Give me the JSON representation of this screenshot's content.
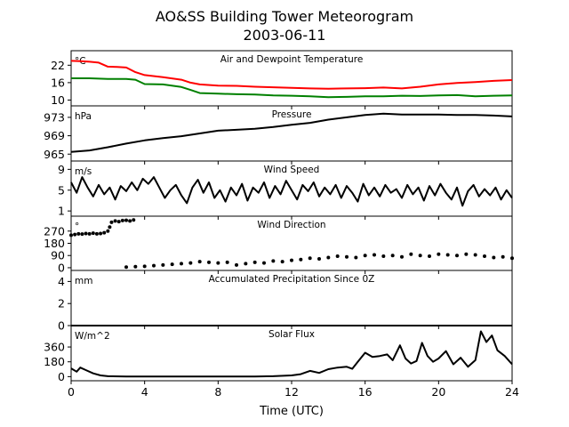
{
  "figure": {
    "title_line1": "AO&SS Building Tower Meteorogram",
    "title_line2": "2003-06-11",
    "xlabel": "Time (UTC)",
    "x_ticks": [
      0,
      4,
      8,
      12,
      16,
      20,
      24
    ],
    "colors": {
      "temperature": "#ff0000",
      "dewpoint": "#008000",
      "line": "#000000"
    }
  },
  "chart_data": [
    {
      "type": "line",
      "title": "Air and Dewpoint Temperature",
      "unit": "°C",
      "xlim": [
        0,
        24
      ],
      "ylim": [
        8,
        27
      ],
      "yticks": [
        10,
        16,
        22
      ],
      "series": [
        {
          "key": "temperature",
          "x": [
            0,
            0.5,
            1.0,
            1.5,
            2.0,
            2.5,
            3.0,
            3.5,
            4.0,
            5.0,
            6.0,
            6.5,
            7.0,
            8.0,
            9.0,
            10.0,
            11.0,
            12.0,
            13.0,
            14.0,
            15.0,
            16.0,
            17.0,
            18.0,
            19.0,
            20.0,
            21.0,
            22.0,
            23.0,
            24.0
          ],
          "y": [
            23.5,
            23.4,
            23.2,
            22.9,
            21.5,
            21.4,
            21.2,
            19.6,
            18.6,
            17.9,
            17.0,
            16.0,
            15.4,
            15.0,
            14.9,
            14.6,
            14.4,
            14.2,
            14.0,
            13.9,
            14.0,
            14.1,
            14.3,
            14.0,
            14.6,
            15.4,
            15.9,
            16.2,
            16.6,
            16.9
          ]
        },
        {
          "key": "dewpoint",
          "x": [
            0,
            1.0,
            2.0,
            3.0,
            3.5,
            4.0,
            5.0,
            6.0,
            6.5,
            7.0,
            8.0,
            9.0,
            10.0,
            11.0,
            12.0,
            13.0,
            14.0,
            15.0,
            16.0,
            17.0,
            18.0,
            19.0,
            20.0,
            21.0,
            22.0,
            23.0,
            24.0
          ],
          "y": [
            17.5,
            17.5,
            17.3,
            17.3,
            17.0,
            15.5,
            15.4,
            14.5,
            13.5,
            12.4,
            12.2,
            12.0,
            11.9,
            11.6,
            11.5,
            11.3,
            11.0,
            11.1,
            11.3,
            11.3,
            11.5,
            11.4,
            11.6,
            11.7,
            11.3,
            11.5,
            11.6
          ]
        }
      ]
    },
    {
      "type": "line",
      "title": "Pressure",
      "unit": "hPa",
      "xlim": [
        0,
        24
      ],
      "ylim": [
        963.5,
        975.5
      ],
      "yticks": [
        965,
        969,
        973
      ],
      "series": [
        {
          "key": "pressure",
          "x": [
            0,
            1,
            2,
            3,
            4,
            5,
            6,
            7,
            8,
            9,
            10,
            11,
            12,
            13,
            14,
            15,
            16,
            17,
            18,
            19,
            20,
            21,
            22,
            23,
            24
          ],
          "y": [
            965.5,
            965.8,
            966.5,
            967.3,
            968.0,
            968.5,
            968.9,
            969.5,
            970.1,
            970.3,
            970.5,
            970.9,
            971.4,
            971.8,
            972.5,
            973.0,
            973.5,
            973.8,
            973.6,
            973.6,
            973.6,
            973.5,
            973.5,
            973.4,
            973.2
          ]
        }
      ]
    },
    {
      "type": "line",
      "title": "Wind Speed",
      "unit": "m/s",
      "xlim": [
        0,
        24
      ],
      "ylim": [
        0,
        10.6
      ],
      "yticks": [
        1,
        5,
        9
      ],
      "series": [
        {
          "key": "wind_speed",
          "x": [
            0,
            0.3,
            0.6,
            0.9,
            1.2,
            1.5,
            1.8,
            2.1,
            2.4,
            2.7,
            3.0,
            3.3,
            3.6,
            3.9,
            4.2,
            4.5,
            4.8,
            5.1,
            5.4,
            5.7,
            6.0,
            6.3,
            6.6,
            6.9,
            7.2,
            7.5,
            7.8,
            8.1,
            8.4,
            8.7,
            9.0,
            9.3,
            9.6,
            9.9,
            10.2,
            10.5,
            10.8,
            11.1,
            11.4,
            11.7,
            12.0,
            12.3,
            12.6,
            12.9,
            13.2,
            13.5,
            13.8,
            14.1,
            14.4,
            14.7,
            15.0,
            15.3,
            15.6,
            15.9,
            16.2,
            16.5,
            16.8,
            17.1,
            17.4,
            17.7,
            18.0,
            18.3,
            18.6,
            18.9,
            19.2,
            19.5,
            19.8,
            20.1,
            20.4,
            20.7,
            21.0,
            21.3,
            21.6,
            21.9,
            22.2,
            22.5,
            22.8,
            23.1,
            23.4,
            23.7,
            24.0
          ],
          "y": [
            6.5,
            4.5,
            7.5,
            5.5,
            3.8,
            6.0,
            4.2,
            5.5,
            3.2,
            5.8,
            4.8,
            6.5,
            5.0,
            7.2,
            6.2,
            7.5,
            5.5,
            3.5,
            5.0,
            6.0,
            4.0,
            2.5,
            5.5,
            7.0,
            4.5,
            6.5,
            3.5,
            5.0,
            2.8,
            5.5,
            4.0,
            6.2,
            3.0,
            5.5,
            4.5,
            6.5,
            3.5,
            5.8,
            4.2,
            6.8,
            5.0,
            3.2,
            6.0,
            4.8,
            6.5,
            3.8,
            5.5,
            4.2,
            6.0,
            3.5,
            5.8,
            4.5,
            2.8,
            6.2,
            4.0,
            5.5,
            3.8,
            6.0,
            4.5,
            5.2,
            3.5,
            6.0,
            4.2,
            5.5,
            3.0,
            5.8,
            4.0,
            6.2,
            4.5,
            3.2,
            5.5,
            2.0,
            4.8,
            6.0,
            3.8,
            5.2,
            4.0,
            5.5,
            3.2,
            5.0,
            3.5
          ]
        }
      ]
    },
    {
      "type": "scatter",
      "title": "Wind Direction",
      "unit": "°",
      "xlim": [
        0,
        24
      ],
      "ylim": [
        -20,
        380
      ],
      "yticks": [
        0,
        90,
        180,
        270
      ],
      "series": [
        {
          "key": "wind_direction_early",
          "x": [
            0,
            0.2,
            0.4,
            0.6,
            0.8,
            1.0,
            1.2,
            1.4,
            1.6,
            1.8,
            2.0,
            2.1,
            2.2,
            2.4,
            2.6,
            2.8,
            3.0,
            3.2,
            3.4
          ],
          "y": [
            240,
            245,
            250,
            248,
            252,
            250,
            255,
            250,
            252,
            258,
            270,
            300,
            335,
            345,
            340,
            348,
            350,
            345,
            352
          ]
        },
        {
          "key": "wind_direction_late",
          "x": [
            3.0,
            3.5,
            4.0,
            4.5,
            5.0,
            5.5,
            6.0,
            6.5,
            7.0,
            7.5,
            8.0,
            8.5,
            9.0,
            9.5,
            10.0,
            10.5,
            11.0,
            11.5,
            12.0,
            12.5,
            13.0,
            13.5,
            14.0,
            14.5,
            15.0,
            15.5,
            16.0,
            16.5,
            17.0,
            17.5,
            18.0,
            18.5,
            19.0,
            19.5,
            20.0,
            20.5,
            21.0,
            21.5,
            22.0,
            22.5,
            23.0,
            23.5,
            24.0
          ],
          "y": [
            5,
            8,
            10,
            15,
            20,
            25,
            30,
            35,
            45,
            40,
            35,
            40,
            20,
            30,
            40,
            35,
            50,
            45,
            55,
            60,
            70,
            65,
            75,
            85,
            80,
            75,
            90,
            95,
            85,
            90,
            80,
            100,
            90,
            85,
            100,
            95,
            90,
            100,
            95,
            85,
            75,
            80,
            70
          ]
        }
      ]
    },
    {
      "type": "line",
      "title": "Accumulated Precipitation Since 0Z",
      "unit": "mm",
      "xlim": [
        0,
        24
      ],
      "ylim": [
        0,
        5
      ],
      "yticks": [
        0,
        2,
        4
      ],
      "series": [
        {
          "key": "precipitation",
          "x": [
            0,
            24
          ],
          "y": [
            0,
            0
          ]
        }
      ]
    },
    {
      "type": "line",
      "title": "Solar Flux",
      "unit": "W/m^2",
      "xlim": [
        0,
        24
      ],
      "ylim": [
        -50,
        620
      ],
      "yticks": [
        0,
        180,
        360
      ],
      "series": [
        {
          "key": "solar_flux",
          "x": [
            0,
            0.3,
            0.5,
            0.8,
            1.2,
            1.6,
            2.0,
            3.0,
            4.0,
            6.0,
            8.0,
            10.0,
            11.0,
            12.0,
            12.5,
            13.0,
            13.5,
            14.0,
            14.5,
            15.0,
            15.3,
            15.6,
            16.0,
            16.4,
            16.8,
            17.2,
            17.5,
            17.9,
            18.2,
            18.5,
            18.8,
            19.1,
            19.4,
            19.7,
            20.0,
            20.4,
            20.8,
            21.2,
            21.6,
            22.0,
            22.3,
            22.6,
            22.9,
            23.2,
            23.6,
            24.0
          ],
          "y": [
            100,
            60,
            110,
            80,
            40,
            15,
            5,
            2,
            2,
            2,
            2,
            2,
            5,
            15,
            30,
            70,
            45,
            90,
            110,
            120,
            95,
            180,
            290,
            240,
            250,
            270,
            200,
            380,
            220,
            160,
            190,
            410,
            250,
            180,
            220,
            310,
            150,
            230,
            120,
            200,
            550,
            420,
            500,
            320,
            250,
            150
          ]
        }
      ]
    }
  ]
}
